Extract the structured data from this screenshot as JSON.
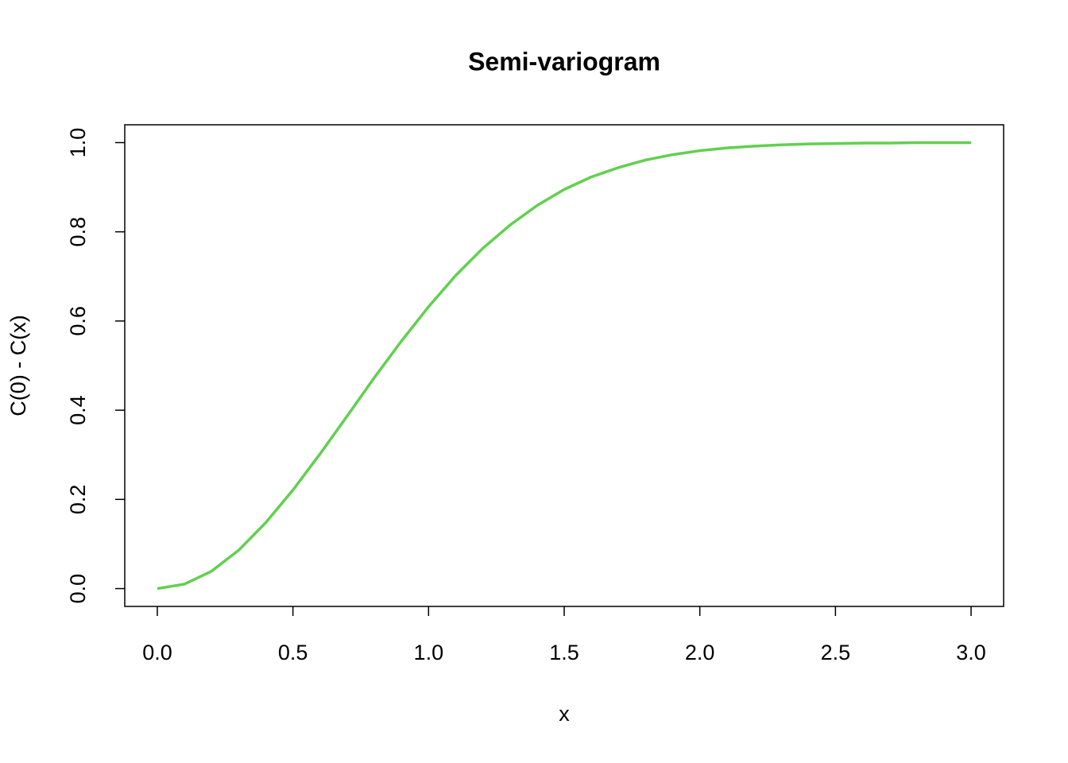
{
  "chart_data": {
    "type": "line",
    "title": "Semi-variogram",
    "x_label": "x",
    "y_label": "C(0) - C(x)",
    "x": [
      0,
      0.1,
      0.2,
      0.3,
      0.4,
      0.5,
      0.6,
      0.7,
      0.8,
      0.9,
      1.0,
      1.1,
      1.2,
      1.3,
      1.4,
      1.5,
      1.6,
      1.7,
      1.8,
      1.9,
      2.0,
      2.1,
      2.2,
      2.3,
      2.4,
      2.5,
      2.6,
      2.7,
      2.8,
      2.9,
      3.0
    ],
    "series": [
      {
        "color": "#61d04f",
        "values": [
          0,
          0.01,
          0.039,
          0.086,
          0.148,
          0.221,
          0.302,
          0.387,
          0.473,
          0.555,
          0.632,
          0.702,
          0.763,
          0.815,
          0.859,
          0.895,
          0.923,
          0.944,
          0.961,
          0.973,
          0.982,
          0.988,
          0.992,
          0.995,
          0.997,
          0.998,
          0.999,
          0.999,
          1.0,
          1.0,
          1.0
        ]
      }
    ],
    "xlim": [
      -0.12,
      3.12
    ],
    "ylim": [
      -0.04,
      1.04
    ],
    "xticks": [
      {
        "value": 0,
        "label": "0.0"
      },
      0.5,
      {
        "value": 1,
        "label": "1.0"
      },
      1.5,
      {
        "value": 2,
        "label": "2.0"
      },
      2.5,
      {
        "value": 3,
        "label": "3.0"
      }
    ],
    "yticks": [
      {
        "value": 0,
        "label": "0.0"
      },
      0.2,
      0.4,
      0.6,
      0.8,
      {
        "value": 1,
        "label": "1.0"
      }
    ]
  }
}
